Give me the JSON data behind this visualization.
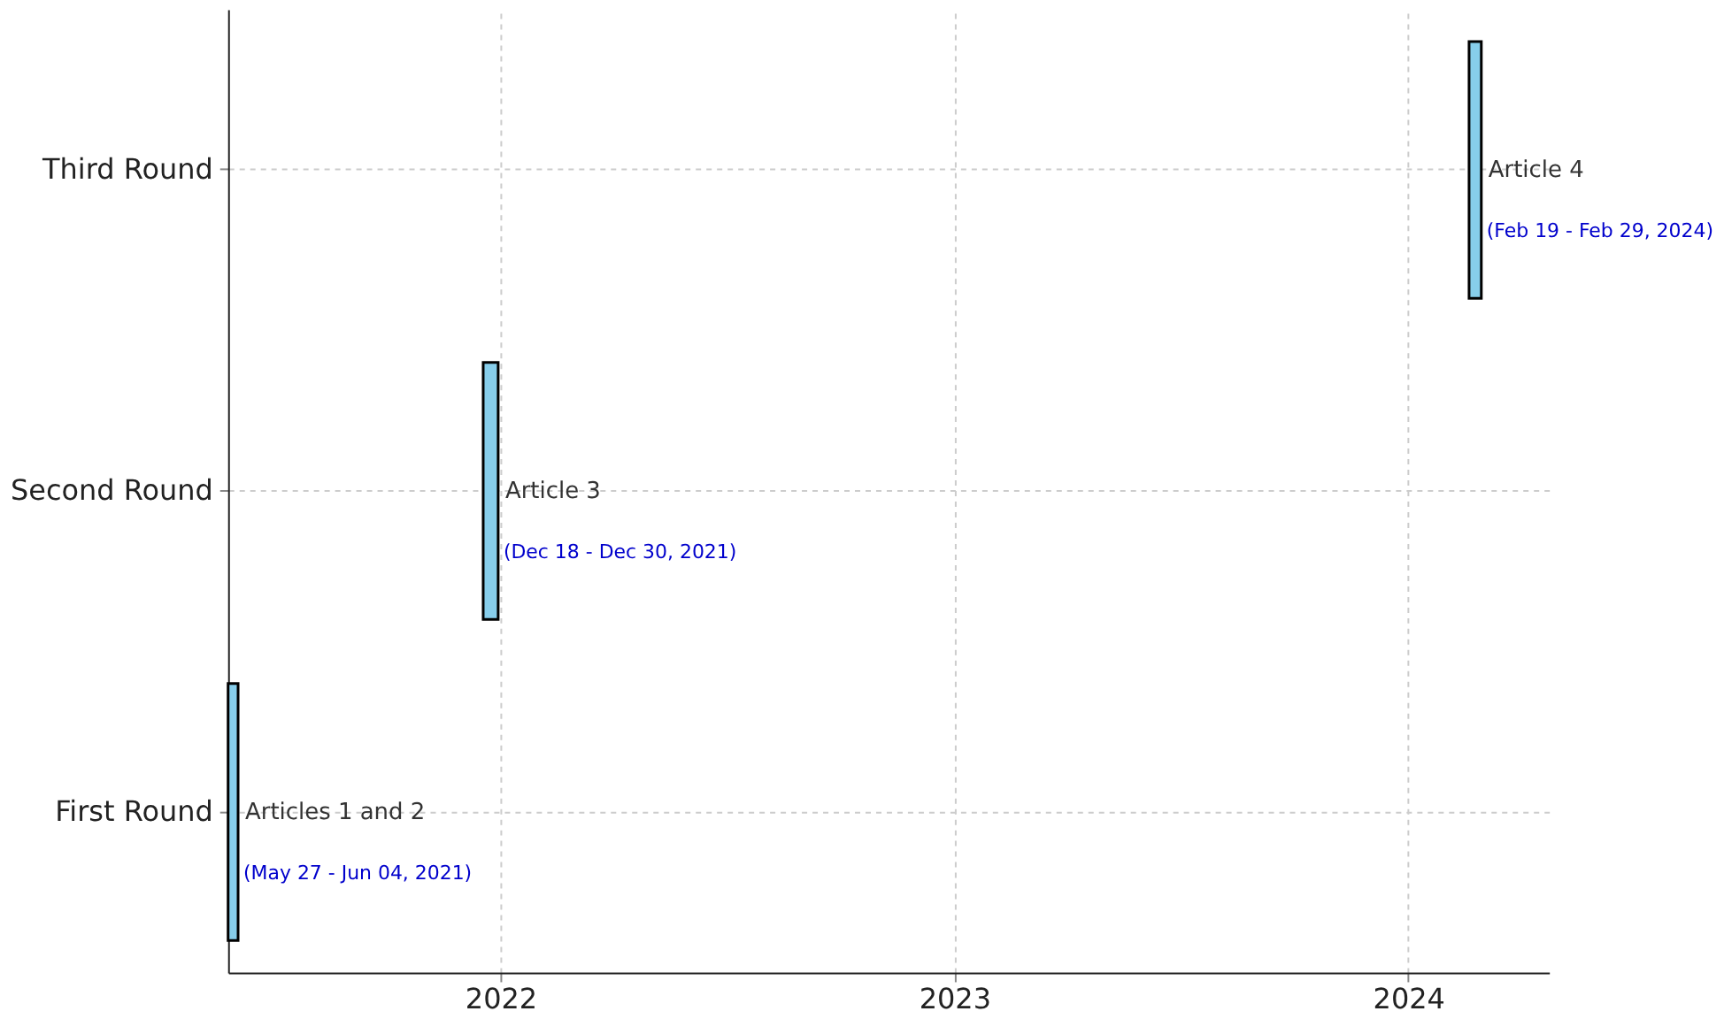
{
  "chart_data": {
    "type": "bar",
    "orientation": "horizontal",
    "categories": [
      "Third Round",
      "Second Round",
      "First Round"
    ],
    "base": [
      2024.134,
      2021.962,
      2021.4
    ],
    "values": [
      0.027,
      0.033,
      0.022
    ],
    "color": "#87ceeb",
    "xlim": [
      2021.4,
      2024.31
    ],
    "xticks": [
      2022,
      2023,
      2024
    ],
    "grid": true,
    "annotations": [
      "Article 4",
      "(Feb 19 - Feb 29, 2024)",
      "Article 3",
      "(Dec 18 - Dec 30, 2021)",
      "Articles 1 and 2",
      "(May 27 - Jun 04, 2021)"
    ]
  }
}
